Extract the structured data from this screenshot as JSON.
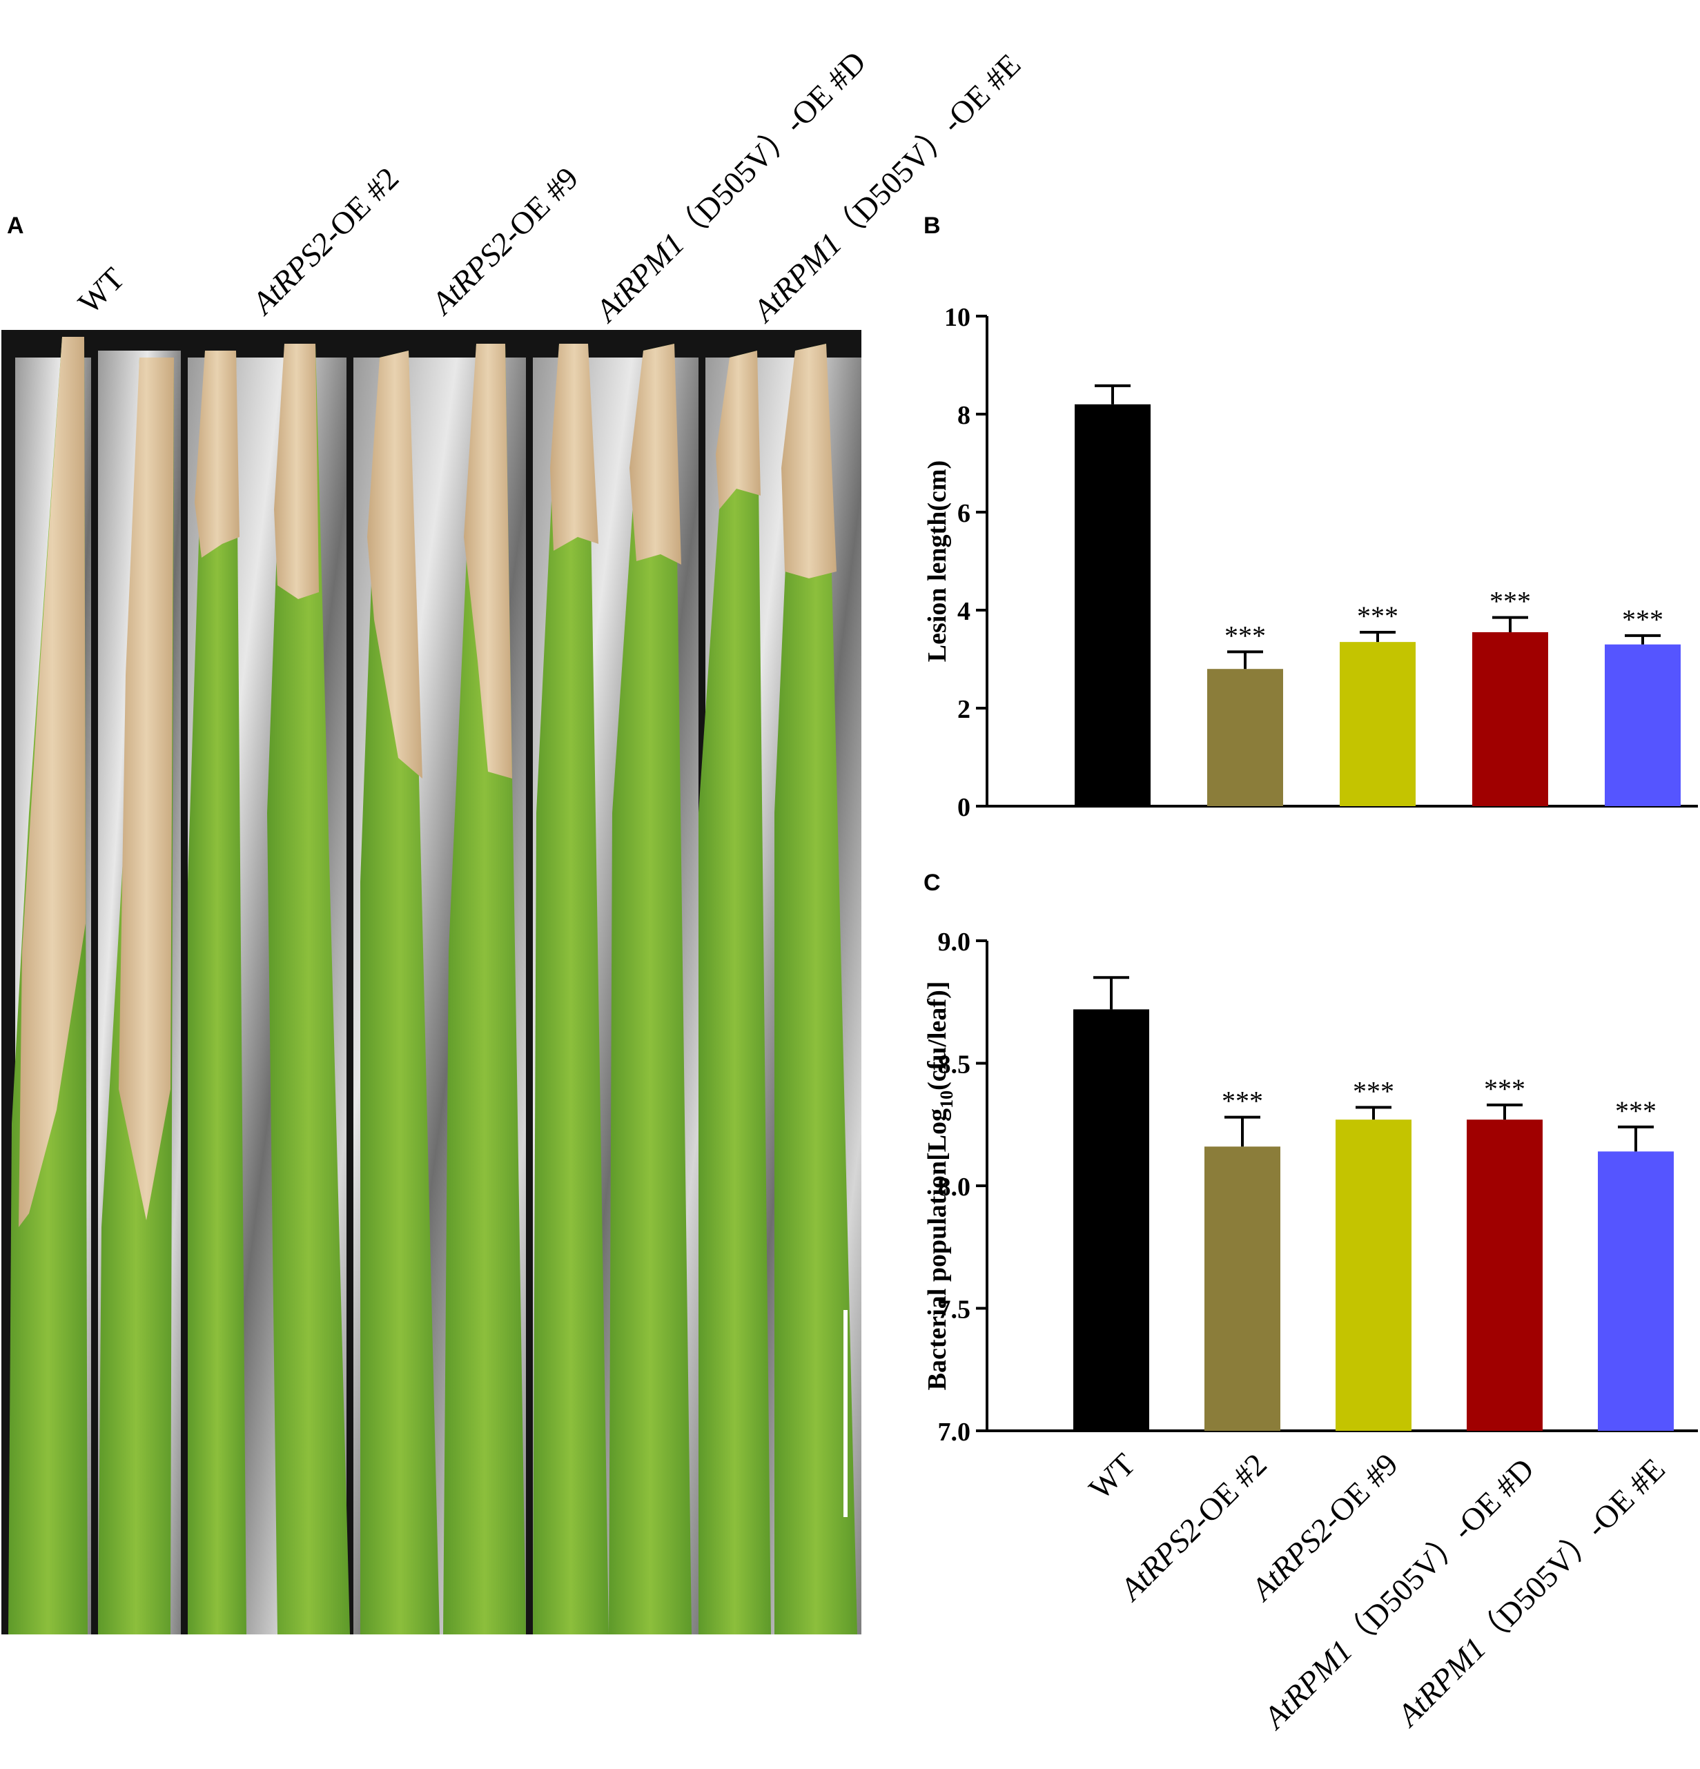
{
  "panels": {
    "a": "A",
    "b": "B",
    "c": "C"
  },
  "photo_labels": [
    {
      "gene": "",
      "rest": "WT"
    },
    {
      "gene": "AtRPS2",
      "rest": "-OE #2"
    },
    {
      "gene": "AtRPS2",
      "rest": "-OE #9"
    },
    {
      "gene": "AtRPM1",
      "rest": "（D505V）-OE #D"
    },
    {
      "gene": "AtRPM1",
      "rest": "（D505V）-OE #E"
    }
  ],
  "colors": {
    "WT": "#000000",
    "AtRPS2-OE #2": "#8B7D3A",
    "AtRPS2-OE #9": "#C4C400",
    "AtRPM1(D505V)-OE #D": "#A00000",
    "AtRPM1(D505V)-OE #E": "#5555FF"
  },
  "chart_data": [
    {
      "type": "bar",
      "panel": "B",
      "categories": [
        "WT",
        "AtRPS2-OE #2",
        "AtRPS2-OE #9",
        "AtRPM1(D505V)-OE #D",
        "AtRPM1(D505V)-OE #E"
      ],
      "values": [
        8.2,
        2.8,
        3.35,
        3.55,
        3.3
      ],
      "errors": [
        0.38,
        0.35,
        0.2,
        0.3,
        0.18
      ],
      "significance": [
        "",
        "***",
        "***",
        "***",
        "***"
      ],
      "ylabel": "Lesion length(cm)",
      "ylim": [
        0,
        10
      ],
      "yticks": [
        "0",
        "2",
        "4",
        "6",
        "8",
        "10"
      ],
      "bar_colors": [
        "#000000",
        "#8B7D3A",
        "#C4C400",
        "#A00000",
        "#5555FF"
      ],
      "grid": false
    },
    {
      "type": "bar",
      "panel": "C",
      "categories": [
        "WT",
        "AtRPS2-OE #2",
        "AtRPS2-OE #9",
        "AtRPM1(D505V)-OE #D",
        "AtRPM1(D505V)-OE #E"
      ],
      "values": [
        8.72,
        8.16,
        8.27,
        8.27,
        8.14
      ],
      "errors": [
        0.13,
        0.12,
        0.05,
        0.06,
        0.1
      ],
      "significance": [
        "",
        "***",
        "***",
        "***",
        "***"
      ],
      "ylabel_parts": [
        "Bacterial population[Log",
        "10",
        "(cfu/leaf)]"
      ],
      "ylim": [
        7.0,
        9.0
      ],
      "yticks": [
        "7.0",
        "7.5",
        "8.0",
        "8.5",
        "9.0"
      ],
      "bar_colors": [
        "#000000",
        "#8B7D3A",
        "#C4C400",
        "#A00000",
        "#5555FF"
      ],
      "grid": false
    }
  ],
  "x_tick_labels": [
    {
      "gene": "",
      "rest": "WT"
    },
    {
      "gene": "AtRPS2",
      "rest": "-OE #2"
    },
    {
      "gene": "AtRPS2",
      "rest": "-OE #9"
    },
    {
      "gene": "AtRPM1",
      "rest": "（D505V）-OE #D"
    },
    {
      "gene": "AtRPM1",
      "rest": "（D505V）-OE #E"
    }
  ]
}
